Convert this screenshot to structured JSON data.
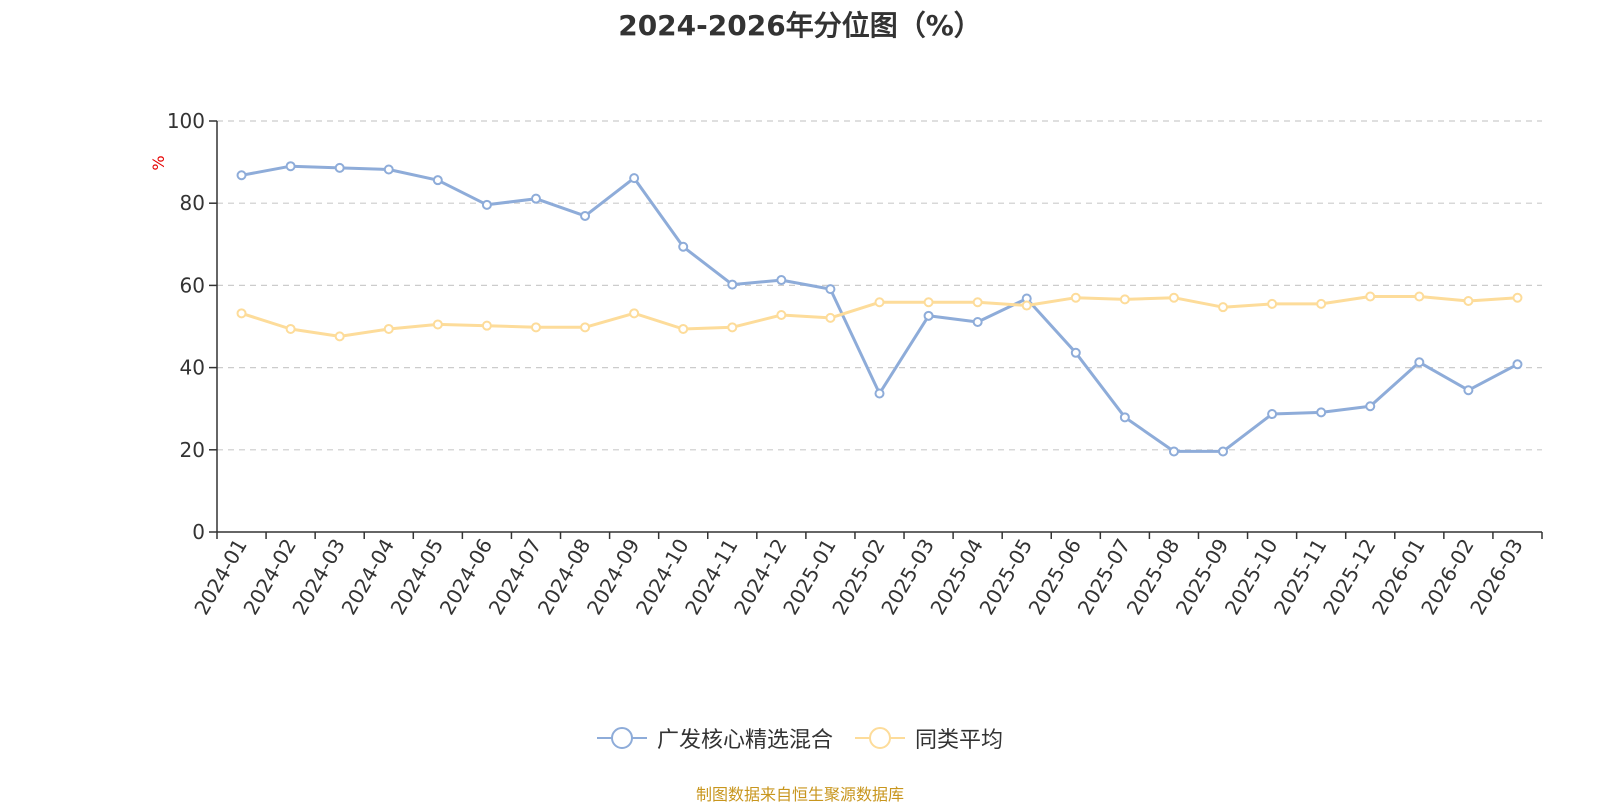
{
  "chart_data": {
    "type": "line",
    "title": "2024-2026年分位图（%）",
    "ylabel": "%",
    "ylim": [
      0,
      100
    ],
    "yticks": [
      0,
      20,
      40,
      60,
      80,
      100
    ],
    "grid": true,
    "legend_position": "bottom",
    "categories": [
      "2024-01",
      "2024-02",
      "2024-03",
      "2024-04",
      "2024-05",
      "2024-06",
      "2024-07",
      "2024-08",
      "2024-09",
      "2024-10",
      "2024-11",
      "2024-12",
      "2025-01",
      "2025-02",
      "2025-03",
      "2025-04",
      "2025-05",
      "2025-06",
      "2025-07",
      "2025-08",
      "2025-09",
      "2025-10",
      "2025-11",
      "2025-12",
      "2026-01",
      "2026-02",
      "2026-03"
    ],
    "series": [
      {
        "name": "广发核心精选混合",
        "color": "#8eacd9",
        "values": [
          86.8,
          89.0,
          88.6,
          88.2,
          85.6,
          79.6,
          81.1,
          76.9,
          86.1,
          69.4,
          60.2,
          61.3,
          59.1,
          33.7,
          52.6,
          51.1,
          56.8,
          43.6,
          27.9,
          19.6,
          19.6,
          28.7,
          29.1,
          30.6,
          41.3,
          34.5,
          40.8
        ]
      },
      {
        "name": "同类平均",
        "color": "#fddc9a",
        "values": [
          53.2,
          49.4,
          47.6,
          49.4,
          50.5,
          50.2,
          49.8,
          49.8,
          53.2,
          49.4,
          49.8,
          52.8,
          52.1,
          55.9,
          55.9,
          55.9,
          55.1,
          57.0,
          56.6,
          57.0,
          54.7,
          55.5,
          55.5,
          57.3,
          57.3,
          56.2,
          57.0
        ]
      }
    ]
  },
  "footer": {
    "source": "制图数据来自恒生聚源数据库"
  }
}
